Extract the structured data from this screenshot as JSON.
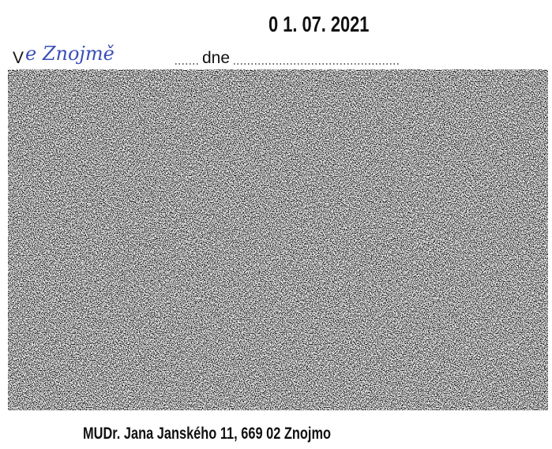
{
  "stamp": {
    "date": "0 1. 07. 2021"
  },
  "place_line": {
    "prefix": "V",
    "handwritten": "e Znojmě",
    "label": "dne"
  },
  "footer": {
    "address": "MUDr. Jana Janského 11, 669 02 Znojmo"
  }
}
